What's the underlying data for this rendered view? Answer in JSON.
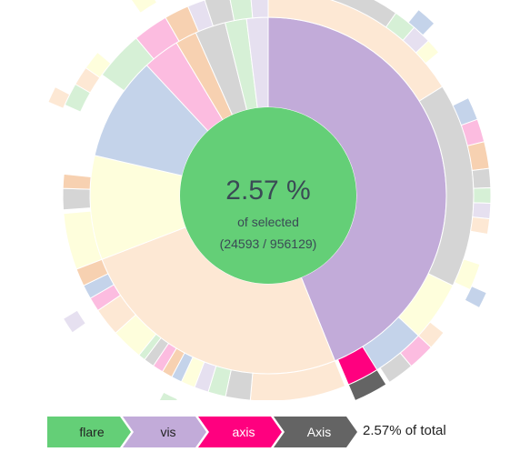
{
  "center": {
    "percentage": "2.57 %",
    "subtitle": "of selected",
    "ratio": "(24593 / 956129)",
    "selected_value": 24593,
    "total_value": 956129
  },
  "breadcrumb": [
    {
      "label": "flare",
      "color": "#64cf77"
    },
    {
      "label": "vis",
      "color": "#c2abd9"
    },
    {
      "label": "axis",
      "color": "#ff007f"
    },
    {
      "label": "Axis",
      "color": "#646464"
    }
  ],
  "summary": "2.57% of total",
  "colors": {
    "root": "#64cf77",
    "vis": "#c2abd9",
    "axis": "#ff007f",
    "Axis": "#646464",
    "peach": "#fde8d4",
    "gray": "#d5d5d5",
    "blue": "#c4d3ea",
    "yellow": "#fefedc",
    "green": "#d6f0d6",
    "pink": "#fcbce0",
    "orange": "#f7d1b1",
    "lavender": "#e6e0f0"
  },
  "chart_data": {
    "type": "sunburst",
    "title": "",
    "root": "flare",
    "selected_path": [
      "flare",
      "vis",
      "axis",
      "Axis"
    ],
    "selected_value": 24593,
    "total_value": 956129,
    "rings": [
      {
        "level": 1,
        "segments": [
          {
            "color": "vis",
            "start": 0,
            "end": 158
          },
          {
            "color": "peach",
            "start": 158,
            "end": 249
          },
          {
            "color": "yellow",
            "start": 249,
            "end": 283
          },
          {
            "color": "blue",
            "start": 283,
            "end": 317
          },
          {
            "color": "pink",
            "start": 317,
            "end": 329
          },
          {
            "color": "orange",
            "start": 329,
            "end": 336
          },
          {
            "color": "gray",
            "start": 336,
            "end": 346
          },
          {
            "color": "green",
            "start": 346,
            "end": 353
          },
          {
            "color": "lavender",
            "start": 353,
            "end": 360
          }
        ]
      },
      {
        "level": 2,
        "segments": [
          {
            "color": "peach",
            "start": 0,
            "end": 58
          },
          {
            "color": "gray",
            "start": 58,
            "end": 116
          },
          {
            "color": "yellow",
            "start": 116,
            "end": 133
          },
          {
            "color": "blue",
            "start": 133,
            "end": 148
          },
          {
            "color": "axis",
            "start": 148,
            "end": 157
          },
          {
            "color": "peach",
            "start": 158,
            "end": 185
          },
          {
            "color": "gray",
            "start": 185,
            "end": 192
          },
          {
            "color": "green",
            "start": 192,
            "end": 197
          },
          {
            "color": "lavender",
            "start": 197,
            "end": 201
          },
          {
            "color": "yellow",
            "start": 201,
            "end": 205
          },
          {
            "color": "blue",
            "start": 205,
            "end": 208
          },
          {
            "color": "orange",
            "start": 208,
            "end": 211
          },
          {
            "color": "pink",
            "start": 211,
            "end": 214
          },
          {
            "color": "gray",
            "start": 214,
            "end": 217
          },
          {
            "color": "green",
            "start": 217,
            "end": 219
          },
          {
            "color": "yellow",
            "start": 219,
            "end": 228
          },
          {
            "color": "peach",
            "start": 228,
            "end": 236
          },
          {
            "color": "pink",
            "start": 236,
            "end": 240
          },
          {
            "color": "blue",
            "start": 240,
            "end": 244
          },
          {
            "color": "orange",
            "start": 244,
            "end": 249
          },
          {
            "color": "yellow",
            "start": 249,
            "end": 265
          },
          {
            "color": "gray",
            "start": 266,
            "end": 272
          },
          {
            "color": "orange",
            "start": 272,
            "end": 276
          },
          {
            "color": "green",
            "start": 306,
            "end": 320
          },
          {
            "color": "pink",
            "start": 320,
            "end": 330
          },
          {
            "color": "orange",
            "start": 330,
            "end": 337
          },
          {
            "color": "lavender",
            "start": 337,
            "end": 342
          },
          {
            "color": "gray",
            "start": 342,
            "end": 349
          },
          {
            "color": "green",
            "start": 349,
            "end": 355
          },
          {
            "color": "lavender",
            "start": 355,
            "end": 360
          }
        ]
      },
      {
        "level": 3,
        "segments": [
          {
            "color": "gray",
            "start": 0,
            "end": 35
          },
          {
            "color": "green",
            "start": 35,
            "end": 41
          },
          {
            "color": "lavender",
            "start": 41,
            "end": 46
          },
          {
            "color": "yellow",
            "start": 46,
            "end": 50
          },
          {
            "color": "blue",
            "start": 64,
            "end": 70
          },
          {
            "color": "pink",
            "start": 70,
            "end": 76
          },
          {
            "color": "orange",
            "start": 76,
            "end": 83
          },
          {
            "color": "gray",
            "start": 83,
            "end": 88
          },
          {
            "color": "green",
            "start": 88,
            "end": 92
          },
          {
            "color": "lavender",
            "start": 92,
            "end": 96
          },
          {
            "color": "peach",
            "start": 96,
            "end": 100
          },
          {
            "color": "yellow",
            "start": 108,
            "end": 115
          },
          {
            "color": "peach",
            "start": 128,
            "end": 133
          },
          {
            "color": "pink",
            "start": 133,
            "end": 140
          },
          {
            "color": "gray",
            "start": 140,
            "end": 147
          },
          {
            "color": "Axis",
            "start": 148,
            "end": 157
          },
          {
            "color": "green",
            "start": 294,
            "end": 300
          },
          {
            "color": "peach",
            "start": 300,
            "end": 305
          },
          {
            "color": "yellow",
            "start": 305,
            "end": 310
          },
          {
            "color": "blue",
            "start": 344,
            "end": 348
          },
          {
            "color": "orange",
            "start": 348,
            "end": 351
          },
          {
            "color": "yellow",
            "start": 351,
            "end": 354
          },
          {
            "color": "peach",
            "start": 354,
            "end": 357
          },
          {
            "color": "lavender",
            "start": 357,
            "end": 360
          }
        ]
      },
      {
        "level": 4,
        "segments": [
          {
            "color": "blue",
            "start": 0,
            "end": 5
          },
          {
            "color": "pink",
            "start": 5,
            "end": 10
          },
          {
            "color": "orange",
            "start": 10,
            "end": 15
          },
          {
            "color": "green",
            "start": 15,
            "end": 20
          },
          {
            "color": "lavender",
            "start": 20,
            "end": 25
          },
          {
            "color": "yellow",
            "start": 25,
            "end": 29
          },
          {
            "color": "blue",
            "start": 39,
            "end": 44
          },
          {
            "color": "blue",
            "start": 114,
            "end": 118
          },
          {
            "color": "green",
            "start": 204,
            "end": 208
          },
          {
            "color": "lavender",
            "start": 235,
            "end": 239
          },
          {
            "color": "peach",
            "start": 293,
            "end": 297
          },
          {
            "color": "yellow",
            "start": 325,
            "end": 330
          },
          {
            "color": "blue",
            "start": 340,
            "end": 344
          },
          {
            "color": "pink",
            "start": 348,
            "end": 351
          },
          {
            "color": "orange",
            "start": 351,
            "end": 354
          }
        ]
      }
    ]
  }
}
